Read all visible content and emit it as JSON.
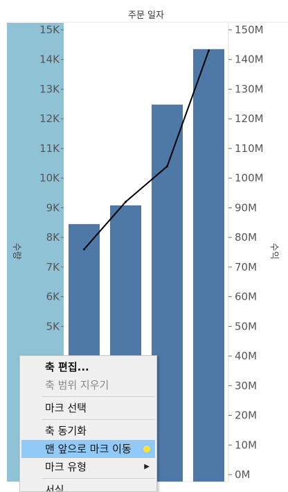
{
  "chart_data": {
    "type": "bar",
    "title": "주문 일자",
    "bar_color": "#4e79a7",
    "line_color": "#000000",
    "left_axis": {
      "label": "수량",
      "ticks": [
        "5K",
        "6K",
        "7K",
        "8K",
        "9K",
        "10K",
        "11K",
        "12K",
        "13K",
        "14K",
        "15K"
      ],
      "tick_values": [
        5000,
        6000,
        7000,
        8000,
        9000,
        10000,
        11000,
        12000,
        13000,
        14000,
        15000
      ],
      "ylim": [
        0,
        15000
      ]
    },
    "right_axis": {
      "label": "수익",
      "ticks": [
        "0M",
        "10M",
        "20M",
        "30M",
        "40M",
        "50M",
        "60M",
        "70M",
        "80M",
        "90M",
        "100M",
        "110M",
        "120M",
        "130M",
        "140M",
        "150M"
      ],
      "tick_values": [
        0,
        10,
        20,
        30,
        40,
        50,
        60,
        70,
        80,
        90,
        100,
        110,
        120,
        130,
        140,
        150
      ],
      "ylim": [
        0,
        150
      ]
    },
    "series": [
      {
        "axis": "left",
        "values": [
          8450,
          9080,
          12480,
          14350
        ]
      },
      {
        "axis": "right",
        "values": [
          76,
          92,
          104,
          143
        ]
      }
    ]
  },
  "context_menu": {
    "items": [
      {
        "label": "축 편집...",
        "bold": true
      },
      {
        "label": "축 범위 지우기",
        "disabled": true
      },
      {
        "separator": true
      },
      {
        "label": "마크 선택"
      },
      {
        "separator": true
      },
      {
        "label": "축 동기화"
      },
      {
        "label": "맨 앞으로 마크 이동",
        "highlight": true
      },
      {
        "label": "마크 유형",
        "submenu": true
      },
      {
        "separator": true
      },
      {
        "label": "서식..."
      }
    ]
  }
}
